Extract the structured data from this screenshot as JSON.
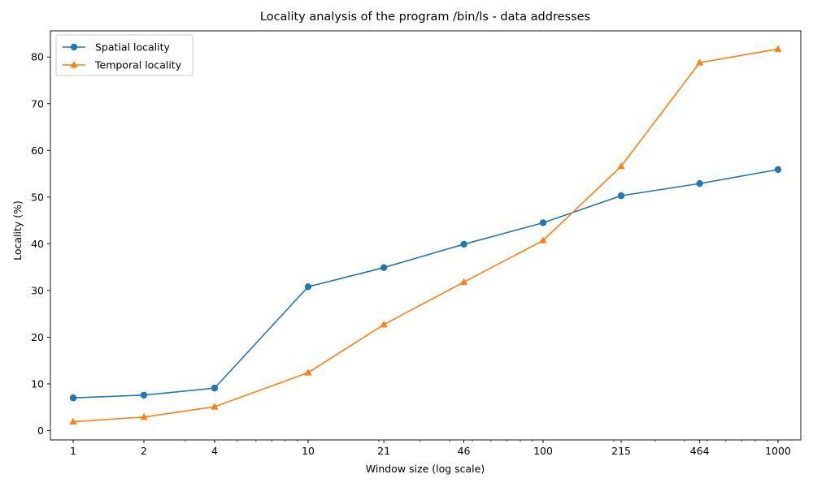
{
  "chart_data": {
    "type": "line",
    "title": "Locality analysis of the program /bin/ls - data addresses",
    "xlabel": "Window size (log scale)",
    "ylabel": "Locality (%)",
    "xscale": "log",
    "x": [
      1,
      2,
      4,
      10,
      21,
      46,
      100,
      215,
      464,
      1000
    ],
    "xtick_labels": [
      "1",
      "2",
      "4",
      "10",
      "21",
      "46",
      "100",
      "215",
      "464",
      "1000"
    ],
    "xlim": [
      0.8,
      1250
    ],
    "yticks": [
      0,
      10,
      20,
      30,
      40,
      50,
      60,
      70,
      80
    ],
    "ylim": [
      -2.0,
      85.6
    ],
    "grid": false,
    "legend_position": "upper-left",
    "series": [
      {
        "name": "Spatial locality",
        "marker": "circle",
        "color": "#1f77b4",
        "values": [
          7.0,
          7.6,
          9.1,
          30.8,
          34.9,
          39.9,
          44.5,
          50.3,
          52.9,
          55.9
        ]
      },
      {
        "name": "Temporal locality",
        "marker": "triangle",
        "color": "#ff7f0e",
        "values": [
          1.9,
          2.9,
          5.1,
          12.4,
          22.7,
          31.8,
          40.7,
          56.6,
          78.8,
          81.7
        ]
      }
    ]
  }
}
